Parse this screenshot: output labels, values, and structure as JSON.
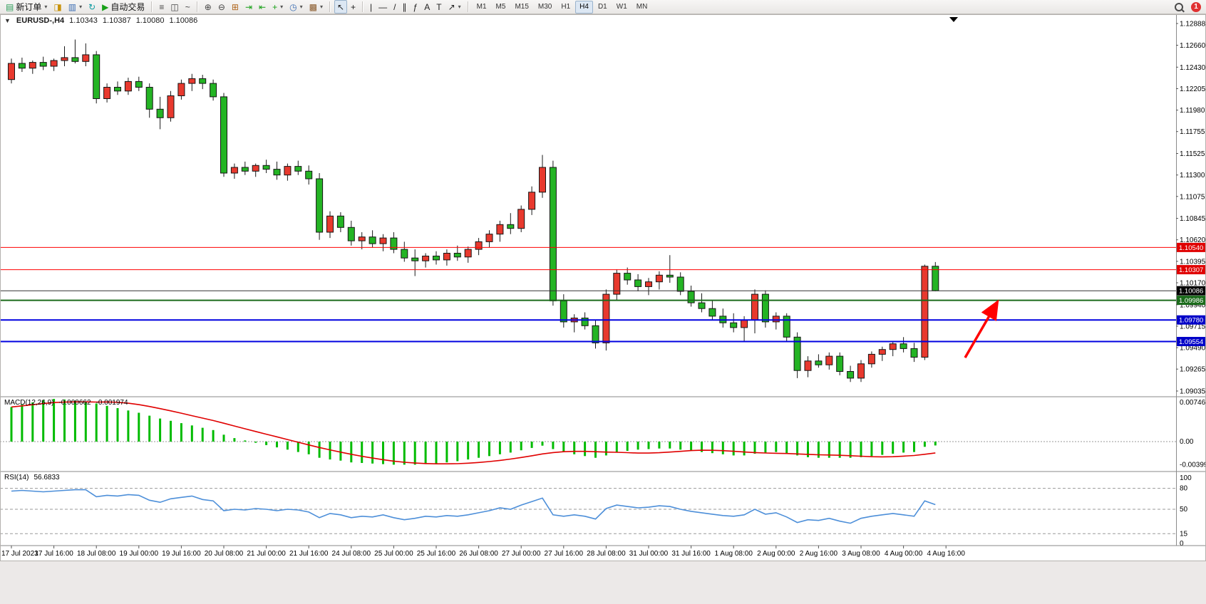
{
  "toolbar": {
    "items": [
      {
        "type": "button",
        "name": "new-order-button",
        "glyph": "▤",
        "glyph_color": "#2E9E5B",
        "label": "新订单",
        "dropdown": true
      },
      {
        "type": "button",
        "name": "new-chart-button",
        "glyph": "◨",
        "glyph_color": "#C8920A"
      },
      {
        "type": "button",
        "name": "profiles-button",
        "glyph": "▥",
        "glyph_color": "#3C6EB4",
        "dropdown": true
      },
      {
        "type": "button",
        "name": "refresh-button",
        "glyph": "↻",
        "glyph_color": "#0A9AA0"
      },
      {
        "type": "button",
        "name": "autotrading-button",
        "glyph": "▶",
        "glyph_color": "#17A017",
        "label": "自动交易"
      },
      {
        "type": "sep"
      },
      {
        "type": "button",
        "name": "bars-chart-button",
        "glyph": "≡",
        "glyph_color": "#444444"
      },
      {
        "type": "button",
        "name": "candlestick-chart-button",
        "glyph": "◫",
        "glyph_color": "#444444"
      },
      {
        "type": "button",
        "name": "line-chart-button",
        "glyph": "~",
        "glyph_color": "#444444"
      },
      {
        "type": "sep"
      },
      {
        "type": "button",
        "name": "zoom-in-button",
        "glyph": "⊕",
        "glyph_color": "#444444"
      },
      {
        "type": "button",
        "name": "zoom-out-button",
        "glyph": "⊖",
        "glyph_color": "#444444"
      },
      {
        "type": "button",
        "name": "tile-windows-button",
        "glyph": "⊞",
        "glyph_color": "#B0651A"
      },
      {
        "type": "button",
        "name": "auto-scroll-button",
        "glyph": "⇥",
        "glyph_color": "#17A017"
      },
      {
        "type": "button",
        "name": "chart-shift-button",
        "glyph": "⇤",
        "glyph_color": "#17A017"
      },
      {
        "type": "button",
        "name": "indicators-button",
        "glyph": "+",
        "glyph_color": "#17A017",
        "dropdown": true
      },
      {
        "type": "button",
        "name": "periods-button",
        "glyph": "◷",
        "glyph_color": "#3C6EB4",
        "dropdown": true
      },
      {
        "type": "button",
        "name": "templates-button",
        "glyph": "▩",
        "glyph_color": "#8A5A2B",
        "dropdown": true
      },
      {
        "type": "sep"
      },
      {
        "type": "button",
        "name": "cursor-button",
        "glyph": "↖",
        "glyph_color": "#222222",
        "active": true
      },
      {
        "type": "button",
        "name": "crosshair-button",
        "glyph": "+",
        "glyph_color": "#222222"
      },
      {
        "type": "sep"
      },
      {
        "type": "button",
        "name": "vertical-line-button",
        "glyph": "|",
        "glyph_color": "#222222"
      },
      {
        "type": "button",
        "name": "horizontal-line-button",
        "glyph": "—",
        "glyph_color": "#222222"
      },
      {
        "type": "button",
        "name": "trendline-button",
        "glyph": "/",
        "glyph_color": "#222222"
      },
      {
        "type": "button",
        "name": "channel-button",
        "glyph": "∥",
        "glyph_color": "#222222"
      },
      {
        "type": "button",
        "name": "fibonacci-button",
        "glyph": "ƒ",
        "glyph_color": "#222222"
      },
      {
        "type": "button",
        "name": "text-button",
        "glyph": "A",
        "glyph_color": "#222222"
      },
      {
        "type": "button",
        "name": "text-label-button",
        "glyph": "T",
        "glyph_color": "#222222"
      },
      {
        "type": "button",
        "name": "arrows-button",
        "glyph": "↗",
        "glyph_color": "#222222",
        "dropdown": true
      },
      {
        "type": "sep"
      }
    ],
    "timeframes": [
      "M1",
      "M5",
      "M15",
      "M30",
      "H1",
      "H4",
      "D1",
      "W1",
      "MN"
    ],
    "active_timeframe": "H4",
    "notification_count": "1",
    "badge_color": "#E03131"
  },
  "chart": {
    "symbol_period": "EURUSD-,H4",
    "open": "1.10343",
    "high": "1.10387",
    "low": "1.10080",
    "close": "1.10086"
  },
  "chart_data": {
    "type": "candlestick",
    "symbol": "EURUSD-",
    "timeframe": "H4",
    "current_bar": {
      "open": 1.10343,
      "high": 1.10387,
      "low": 1.1008,
      "close": 1.10086
    },
    "colors": {
      "bull": "#E8392E",
      "bear": "#24B424",
      "wick": "#1a1a1a",
      "background": "#FFFFFF"
    },
    "y_axis_labels": [
      "1.12888",
      "1.12660",
      "1.12430",
      "1.12205",
      "1.11980",
      "1.11755",
      "1.11525",
      "1.11300",
      "1.11075",
      "1.10845",
      "1.10620",
      "1.10395",
      "1.10170",
      "1.09940",
      "1.09715",
      "1.09490",
      "1.09265",
      "1.09035"
    ],
    "x_labels": [
      {
        "bar": 0,
        "label": "17 Jul 2023"
      },
      {
        "bar": 4,
        "label": "17 Jul 16:00"
      },
      {
        "bar": 8,
        "label": "18 Jul 08:00"
      },
      {
        "bar": 12,
        "label": "19 Jul 00:00"
      },
      {
        "bar": 16,
        "label": "19 Jul 16:00"
      },
      {
        "bar": 20,
        "label": "20 Jul 08:00"
      },
      {
        "bar": 24,
        "label": "21 Jul 00:00"
      },
      {
        "bar": 28,
        "label": "21 Jul 16:00"
      },
      {
        "bar": 32,
        "label": "24 Jul 08:00"
      },
      {
        "bar": 36,
        "label": "25 Jul 00:00"
      },
      {
        "bar": 40,
        "label": "25 Jul 16:00"
      },
      {
        "bar": 44,
        "label": "26 Jul 08:00"
      },
      {
        "bar": 48,
        "label": "27 Jul 00:00"
      },
      {
        "bar": 52,
        "label": "27 Jul 16:00"
      },
      {
        "bar": 56,
        "label": "28 Jul 08:00"
      },
      {
        "bar": 60,
        "label": "31 Jul 00:00"
      },
      {
        "bar": 64,
        "label": "31 Jul 16:00"
      },
      {
        "bar": 68,
        "label": "1 Aug 08:00"
      },
      {
        "bar": 72,
        "label": "2 Aug 00:00"
      },
      {
        "bar": 76,
        "label": "2 Aug 16:00"
      },
      {
        "bar": 80,
        "label": "3 Aug 08:00"
      },
      {
        "bar": 84,
        "label": "4 Aug 00:00"
      },
      {
        "bar": 88,
        "label": "4 Aug 16:00"
      }
    ],
    "hlines": [
      {
        "price": 1.1054,
        "color": "#FF0000",
        "width": 1,
        "badge_bg": "#E00000"
      },
      {
        "price": 1.10307,
        "color": "#FF0000",
        "width": 1,
        "badge_bg": "#E00000"
      },
      {
        "price": 1.10086,
        "color": "#333333",
        "width": 1,
        "badge_bg": "#000000"
      },
      {
        "price": 1.09986,
        "color": "#1B6B1B",
        "width": 2,
        "badge_bg": "#1B6B1B"
      },
      {
        "price": 1.0978,
        "color": "#0000E0",
        "width": 2,
        "badge_bg": "#0000C8"
      },
      {
        "price": 1.09554,
        "color": "#0000E0",
        "width": 2,
        "badge_bg": "#0000C8"
      }
    ],
    "arrow_annotation": {
      "from": {
        "bar": 89.8,
        "price": 1.09385
      },
      "to": {
        "bar": 92.8,
        "price": 1.0996
      },
      "color": "#FF0000"
    },
    "candles": [
      [
        1.123,
        1.1252,
        1.1226,
        1.1247
      ],
      [
        1.1247,
        1.1253,
        1.1238,
        1.1242
      ],
      [
        1.1242,
        1.125,
        1.1236,
        1.1248
      ],
      [
        1.1248,
        1.1254,
        1.124,
        1.1244
      ],
      [
        1.1244,
        1.1252,
        1.1239,
        1.125
      ],
      [
        1.125,
        1.1265,
        1.1244,
        1.1253
      ],
      [
        1.1253,
        1.1272,
        1.1247,
        1.1249
      ],
      [
        1.1249,
        1.1268,
        1.1244,
        1.1256
      ],
      [
        1.1256,
        1.126,
        1.1205,
        1.121
      ],
      [
        1.121,
        1.1226,
        1.1206,
        1.1222
      ],
      [
        1.1222,
        1.1228,
        1.1214,
        1.1218
      ],
      [
        1.1218,
        1.1232,
        1.1214,
        1.1228
      ],
      [
        1.1228,
        1.1233,
        1.1218,
        1.1222
      ],
      [
        1.1222,
        1.1226,
        1.119,
        1.1199
      ],
      [
        1.1199,
        1.1212,
        1.1178,
        1.119
      ],
      [
        1.119,
        1.1218,
        1.1186,
        1.1213
      ],
      [
        1.1213,
        1.123,
        1.1209,
        1.1226
      ],
      [
        1.1226,
        1.1236,
        1.1218,
        1.1231
      ],
      [
        1.1231,
        1.1235,
        1.122,
        1.1226
      ],
      [
        1.1226,
        1.123,
        1.1208,
        1.1212
      ],
      [
        1.1212,
        1.1216,
        1.1128,
        1.1132
      ],
      [
        1.1132,
        1.1142,
        1.1126,
        1.1138
      ],
      [
        1.1138,
        1.1144,
        1.113,
        1.1134
      ],
      [
        1.1134,
        1.1142,
        1.1128,
        1.114
      ],
      [
        1.114,
        1.1146,
        1.1132,
        1.1136
      ],
      [
        1.1136,
        1.1144,
        1.1125,
        1.113
      ],
      [
        1.113,
        1.1142,
        1.1124,
        1.1139
      ],
      [
        1.1139,
        1.1145,
        1.113,
        1.1134
      ],
      [
        1.1134,
        1.114,
        1.112,
        1.1126
      ],
      [
        1.1126,
        1.1132,
        1.1062,
        1.107
      ],
      [
        1.107,
        1.1092,
        1.1064,
        1.1087
      ],
      [
        1.1087,
        1.1091,
        1.107,
        1.1075
      ],
      [
        1.1075,
        1.1082,
        1.1056,
        1.1061
      ],
      [
        1.1061,
        1.107,
        1.1052,
        1.1065
      ],
      [
        1.1065,
        1.1072,
        1.1054,
        1.1058
      ],
      [
        1.1058,
        1.1068,
        1.105,
        1.1064
      ],
      [
        1.1064,
        1.107,
        1.1048,
        1.1052
      ],
      [
        1.1052,
        1.106,
        1.1039,
        1.1043
      ],
      [
        1.1043,
        1.1052,
        1.1024,
        1.104
      ],
      [
        1.104,
        1.1048,
        1.1033,
        1.1045
      ],
      [
        1.1045,
        1.105,
        1.1036,
        1.1041
      ],
      [
        1.1041,
        1.1052,
        1.1035,
        1.1048
      ],
      [
        1.1048,
        1.1056,
        1.104,
        1.1044
      ],
      [
        1.1044,
        1.1055,
        1.1038,
        1.1052
      ],
      [
        1.1052,
        1.1064,
        1.1046,
        1.106
      ],
      [
        1.106,
        1.1072,
        1.1054,
        1.1068
      ],
      [
        1.1068,
        1.1082,
        1.106,
        1.1078
      ],
      [
        1.1078,
        1.109,
        1.1068,
        1.1074
      ],
      [
        1.1074,
        1.1098,
        1.107,
        1.1094
      ],
      [
        1.1094,
        1.1118,
        1.1088,
        1.1112
      ],
      [
        1.1112,
        1.1151,
        1.1106,
        1.1138
      ],
      [
        1.1138,
        1.1145,
        1.0993,
        1.0998
      ],
      [
        1.0998,
        1.1005,
        1.097,
        1.0976
      ],
      [
        1.0976,
        1.0984,
        1.0965,
        1.098
      ],
      [
        1.098,
        1.0986,
        1.0968,
        1.0972
      ],
      [
        1.0972,
        1.0978,
        1.0948,
        1.0954
      ],
      [
        1.0954,
        1.101,
        1.0946,
        1.1005
      ],
      [
        1.1005,
        1.1031,
        1.0999,
        1.1027
      ],
      [
        1.1027,
        1.1033,
        1.1015,
        1.102
      ],
      [
        1.102,
        1.1026,
        1.1008,
        1.1013
      ],
      [
        1.1013,
        1.1022,
        1.1004,
        1.1018
      ],
      [
        1.1018,
        1.1029,
        1.101,
        1.1025
      ],
      [
        1.1025,
        1.1046,
        1.1017,
        1.1023
      ],
      [
        1.1023,
        1.1028,
        1.1004,
        1.1008
      ],
      [
        1.1008,
        1.1014,
        1.0992,
        1.0996
      ],
      [
        1.0996,
        1.1006,
        1.0986,
        1.099
      ],
      [
        1.099,
        1.0998,
        1.0978,
        1.0982
      ],
      [
        1.0982,
        1.099,
        1.097,
        1.0975
      ],
      [
        1.0975,
        1.0985,
        1.0965,
        1.097
      ],
      [
        1.097,
        1.0982,
        1.0956,
        1.0978
      ],
      [
        1.0978,
        1.101,
        1.0964,
        1.1005
      ],
      [
        1.1005,
        1.1009,
        1.097,
        1.0976
      ],
      [
        1.0976,
        1.0986,
        1.0968,
        1.0982
      ],
      [
        1.0982,
        1.0985,
        1.0955,
        1.096
      ],
      [
        1.096,
        1.0965,
        1.0917,
        1.0925
      ],
      [
        1.0925,
        1.094,
        1.0918,
        1.0935
      ],
      [
        1.0935,
        1.0942,
        1.0928,
        1.0931
      ],
      [
        1.0931,
        1.0944,
        1.0926,
        1.094
      ],
      [
        1.094,
        1.0944,
        1.092,
        1.0924
      ],
      [
        1.0924,
        1.093,
        1.0913,
        1.0917
      ],
      [
        1.0917,
        1.0936,
        1.0913,
        1.0932
      ],
      [
        1.0932,
        1.0945,
        1.0928,
        1.0942
      ],
      [
        1.0942,
        1.095,
        1.0935,
        1.0947
      ],
      [
        1.0947,
        1.0956,
        1.094,
        1.0953
      ],
      [
        1.0953,
        1.096,
        1.0944,
        1.0948
      ],
      [
        1.0948,
        1.0954,
        1.0934,
        1.0939
      ],
      [
        1.0939,
        1.1036,
        1.0936,
        1.10343
      ],
      [
        1.10343,
        1.10387,
        1.1008,
        1.10086
      ]
    ],
    "indicators": {
      "macd": {
        "label": "MACD(12,26,9)",
        "value": "-0.000662",
        "signal_value": "-0.001974",
        "histogram_color": "#00BB00",
        "signal_color": "#E00000",
        "axis_labels": [
          "0.00746",
          "0.00",
          "-0.003993"
        ],
        "values": [
          0.006,
          0.0064,
          0.0068,
          0.0072,
          0.0074,
          0.0073,
          0.0071,
          0.0069,
          0.0066,
          0.0062,
          0.0058,
          0.0054,
          0.005,
          0.0045,
          0.004,
          0.0036,
          0.0032,
          0.0028,
          0.0024,
          0.002,
          0.0012,
          0.0006,
          0.0002,
          -0.0002,
          -0.0006,
          -0.001,
          -0.0014,
          -0.0018,
          -0.0022,
          -0.0028,
          -0.0031,
          -0.0033,
          -0.0036,
          -0.0037,
          -0.0038,
          -0.0039,
          -0.004,
          -0.004,
          -0.004,
          -0.0039,
          -0.0038,
          -0.0036,
          -0.0034,
          -0.0031,
          -0.0028,
          -0.0025,
          -0.0022,
          -0.0019,
          -0.0015,
          -0.0011,
          -0.0007,
          -0.0013,
          -0.0018,
          -0.0022,
          -0.0025,
          -0.0028,
          -0.0024,
          -0.0019,
          -0.0016,
          -0.0014,
          -0.0013,
          -0.0012,
          -0.0012,
          -0.0014,
          -0.0016,
          -0.0018,
          -0.002,
          -0.0022,
          -0.0024,
          -0.0024,
          -0.0021,
          -0.0019,
          -0.0018,
          -0.002,
          -0.0024,
          -0.0027,
          -0.0028,
          -0.0028,
          -0.0028,
          -0.0028,
          -0.0027,
          -0.0025,
          -0.0023,
          -0.0021,
          -0.0019,
          -0.0018,
          -0.0009,
          -0.000662
        ]
      },
      "rsi": {
        "label": "RSI(14)",
        "value": "56.6833",
        "line_color": "#4D8FD9",
        "levels": [
          80,
          50,
          15
        ],
        "axis_labels": [
          "100",
          "80",
          "50",
          "15",
          "0"
        ],
        "values": [
          76,
          77,
          76,
          75,
          76,
          77,
          78,
          78,
          68,
          70,
          69,
          71,
          70,
          63,
          60,
          65,
          67,
          69,
          64,
          62,
          48,
          50,
          49,
          51,
          50,
          48,
          50,
          49,
          46,
          38,
          44,
          42,
          38,
          40,
          39,
          42,
          38,
          35,
          37,
          40,
          39,
          41,
          40,
          42,
          45,
          48,
          52,
          50,
          56,
          61,
          66,
          42,
          40,
          42,
          40,
          36,
          51,
          56,
          54,
          52,
          53,
          55,
          54,
          50,
          47,
          45,
          43,
          41,
          40,
          42,
          50,
          43,
          45,
          39,
          31,
          35,
          34,
          37,
          33,
          30,
          37,
          40,
          42,
          44,
          42,
          40,
          62,
          56.6833
        ]
      }
    }
  }
}
